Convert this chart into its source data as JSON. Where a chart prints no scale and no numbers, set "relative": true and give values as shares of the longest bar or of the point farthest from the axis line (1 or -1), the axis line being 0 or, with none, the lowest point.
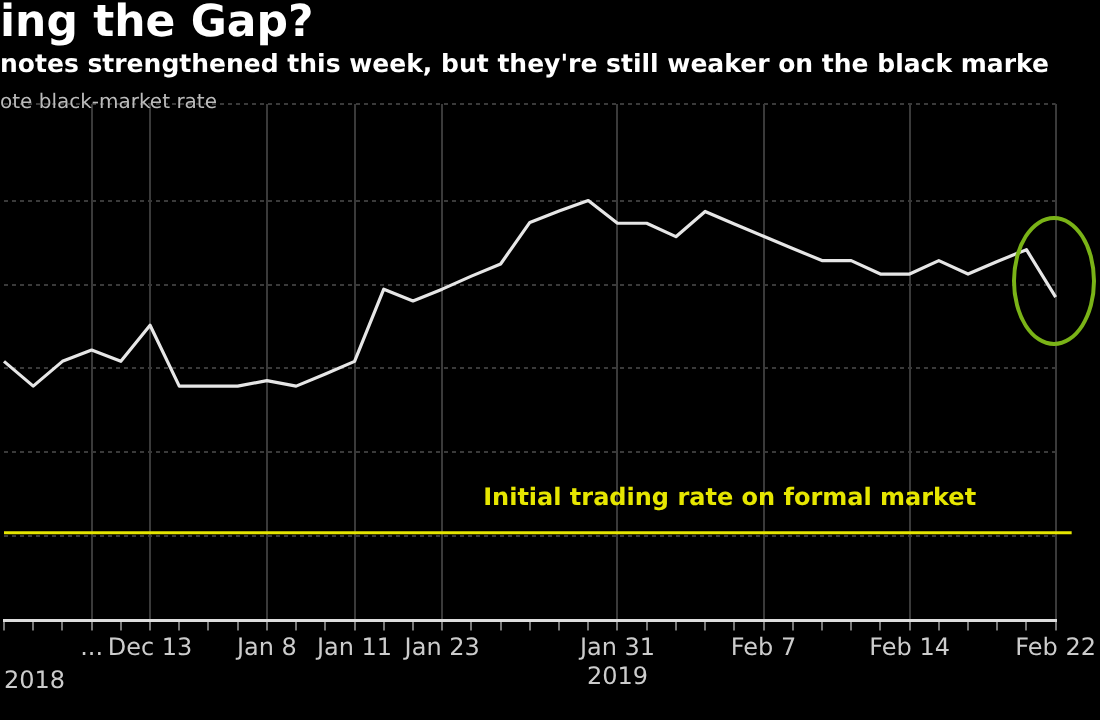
{
  "chart_data": {
    "type": "line",
    "title": "ing the Gap?",
    "subtitle": "notes strengthened this week, but they're still weaker on the black marke",
    "ylabel": "ote black-market rate",
    "categories": [
      null,
      null,
      null,
      "...",
      null,
      "Dec 13",
      null,
      null,
      null,
      "Jan 8",
      null,
      null,
      "Jan 11",
      null,
      null,
      "Jan 23",
      null,
      null,
      null,
      null,
      null,
      "Jan 31\n2019",
      null,
      null,
      null,
      null,
      "Feb 7",
      null,
      null,
      null,
      null,
      "Feb 14",
      null,
      null,
      null,
      null,
      "Feb 22"
    ],
    "series": [
      {
        "color": "#e6e6e6",
        "values": [
          0.617,
          0.558,
          0.617,
          0.644,
          0.617,
          0.703,
          0.558,
          0.558,
          0.558,
          0.571,
          0.558,
          0.587,
          0.617,
          0.789,
          0.761,
          0.789,
          0.82,
          0.849,
          0.948,
          0.975,
          1,
          0.946,
          0.946,
          0.914,
          0.974,
          0.944,
          0.915,
          0.886,
          0.857,
          0.857,
          0.825,
          0.825,
          0.857,
          0.825,
          0.855,
          0.883,
          0.77
        ]
      }
    ],
    "relative": true,
    "grid": true,
    "legend": false,
    "marker": "none",
    "line_style": "solid",
    "ref_lines": [
      {
        "axis": "y",
        "value": 0.209,
        "label": "Initial trading rate on formal market",
        "color": "#e6e600"
      }
    ],
    "annotations": [
      "2018"
    ]
  }
}
